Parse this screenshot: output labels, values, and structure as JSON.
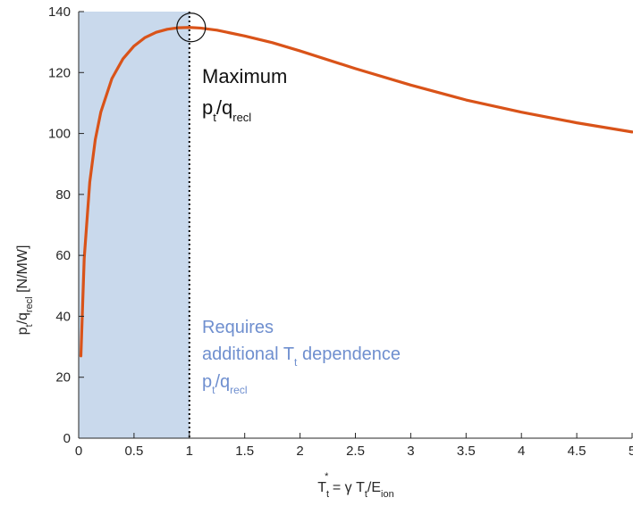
{
  "chart_data": {
    "type": "line",
    "xlabel": {
      "base": "T",
      "sub": "t",
      "sup": "*",
      "rest": " = γ T",
      "rest_sub": "t",
      "rest2": "/E",
      "rest2_sub": "ion"
    },
    "ylabel": {
      "base": "p",
      "sub1": "t",
      "mid": "/q",
      "sub2": "recl",
      "unit": " [N/MW]"
    },
    "xlim": [
      0,
      5
    ],
    "ylim": [
      0,
      140
    ],
    "xticks": [
      0,
      0.5,
      1,
      1.5,
      2,
      2.5,
      3,
      3.5,
      4,
      4.5,
      5
    ],
    "xtick_labels": [
      "0",
      "0.5",
      "1",
      "1.5",
      "2",
      "2.5",
      "3",
      "3.5",
      "4",
      "4.5",
      "5"
    ],
    "yticks": [
      0,
      20,
      40,
      60,
      80,
      100,
      120,
      140
    ],
    "ytick_labels": [
      "0",
      "20",
      "40",
      "60",
      "80",
      "100",
      "120",
      "140"
    ],
    "grid": false,
    "series": [
      {
        "color": "#d95319",
        "x": [
          0.02,
          0.05,
          0.1,
          0.15,
          0.2,
          0.3,
          0.4,
          0.5,
          0.6,
          0.7,
          0.8,
          0.9,
          1.0,
          1.1,
          1.25,
          1.5,
          1.75,
          2.0,
          2.5,
          3.0,
          3.5,
          4.0,
          4.5,
          5.0
        ],
        "y": [
          27,
          59,
          84,
          98,
          107,
          118,
          124.5,
          128.7,
          131.5,
          133.2,
          134.2,
          134.7,
          134.8,
          134.6,
          133.9,
          132.0,
          129.8,
          127.1,
          121.3,
          115.9,
          111.0,
          107.0,
          103.5,
          100.5
        ]
      }
    ],
    "shaded_region": {
      "x_range": [
        0,
        1
      ],
      "color": "#c9d9ec"
    },
    "vertical_line": {
      "x": 1,
      "style": "dotted",
      "color": "#000000"
    },
    "marker_circle": {
      "x": 1,
      "y": 134.8
    },
    "annotations": [
      {
        "id": "maximum",
        "color": "#111111",
        "line1": "Maximum",
        "line2": {
          "base": "p",
          "sub1": "t",
          "mid": "/q",
          "sub2": "recl"
        }
      },
      {
        "id": "requires",
        "color": "#6f8fcf",
        "line1": "Requires",
        "line2": {
          "pre": "additional T",
          "sub": "t",
          "post": " dependence"
        },
        "line3": {
          "base": "p",
          "sub1": "t",
          "mid": "/q",
          "sub2": "recl"
        }
      }
    ]
  }
}
